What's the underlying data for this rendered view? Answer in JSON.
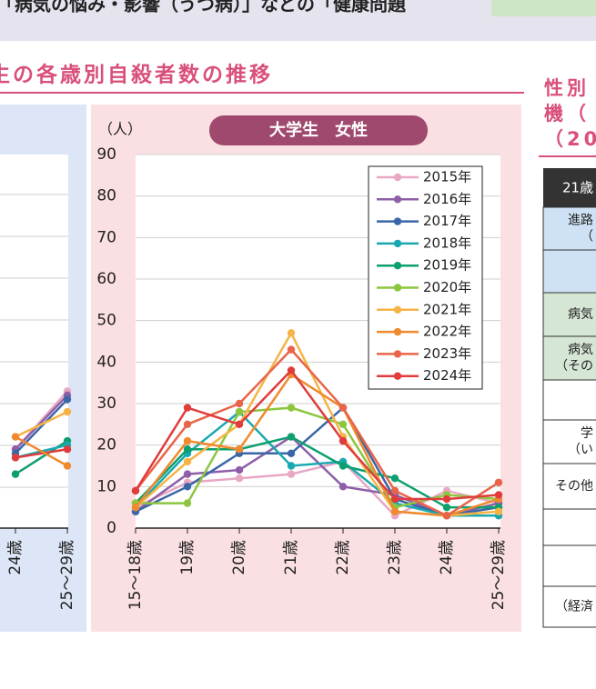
{
  "banner": "「病気の悩み・影響（うつ病）」などの「健康問題",
  "section_title": "生の各歳別自殺者数の推移",
  "side_panel": {
    "title_lines": [
      "性別",
      "機（",
      "（20"
    ],
    "table_header": "21歳",
    "rows": [
      [
        "進路",
        "（"
      ],
      [],
      [
        "病気"
      ],
      [
        "病気",
        "（その"
      ],
      [],
      [
        "学",
        "（い"
      ],
      [
        "その他"
      ],
      [],
      [],
      [
        "（経済"
      ]
    ]
  },
  "chart_data": [
    {
      "type": "line",
      "title": "大学生　女性",
      "y_unit": "（人）",
      "categories": [
        "15～18歳",
        "19歳",
        "20歳",
        "21歳",
        "22歳",
        "23歳",
        "24歳",
        "25～29歳"
      ],
      "ylim": [
        0,
        90
      ],
      "yticks": [
        0,
        10,
        20,
        30,
        40,
        50,
        60,
        70,
        80,
        90
      ],
      "grid": true,
      "legend": "upper right",
      "series": [
        {
          "name": "2015年",
          "color": "#e8a8c4",
          "values": [
            5,
            11,
            12,
            13,
            16,
            3,
            9,
            6
          ]
        },
        {
          "name": "2016年",
          "color": "#8e5fa8",
          "values": [
            4,
            13,
            14,
            22,
            10,
            8,
            3,
            6
          ]
        },
        {
          "name": "2017年",
          "color": "#3a66a8",
          "values": [
            4,
            10,
            18,
            18,
            29,
            7,
            3,
            5
          ]
        },
        {
          "name": "2018年",
          "color": "#1aa8b0",
          "values": [
            5,
            18,
            28,
            15,
            16,
            6,
            3,
            3
          ]
        },
        {
          "name": "2019年",
          "color": "#0e9f6e",
          "values": [
            6,
            19,
            19,
            22,
            15,
            12,
            5,
            5
          ]
        },
        {
          "name": "2020年",
          "color": "#8cc63f",
          "values": [
            6,
            6,
            28,
            29,
            25,
            5,
            8,
            7
          ]
        },
        {
          "name": "2021年",
          "color": "#f5b445",
          "values": [
            5,
            16,
            25,
            47,
            22,
            4,
            3,
            4
          ]
        },
        {
          "name": "2022年",
          "color": "#ef8a2e",
          "values": [
            5,
            21,
            19,
            37,
            29,
            4,
            3,
            7
          ]
        },
        {
          "name": "2023年",
          "color": "#e8654a",
          "values": [
            9,
            25,
            30,
            43,
            29,
            9,
            3,
            11
          ]
        },
        {
          "name": "2024年",
          "color": "#e03c3c",
          "values": [
            9,
            29,
            25,
            38,
            21,
            7,
            7,
            8
          ]
        }
      ]
    },
    {
      "type": "line",
      "categories": [
        "24歳",
        "25～29歳"
      ],
      "ylim": [
        0,
        90
      ],
      "series": [
        {
          "color": "#e8a8c4",
          "values": [
            19,
            33
          ]
        },
        {
          "color": "#8e5fa8",
          "values": [
            19,
            32
          ]
        },
        {
          "color": "#3a66a8",
          "values": [
            18,
            31
          ]
        },
        {
          "color": "#f5b445",
          "values": [
            22,
            28
          ]
        },
        {
          "color": "#0e9f6e",
          "values": [
            13,
            21
          ]
        },
        {
          "color": "#1aa8b0",
          "values": [
            17,
            20
          ]
        },
        {
          "color": "#e03c3c",
          "values": [
            17,
            19
          ]
        },
        {
          "color": "#ef8a2e",
          "values": [
            22,
            15
          ]
        }
      ]
    }
  ]
}
